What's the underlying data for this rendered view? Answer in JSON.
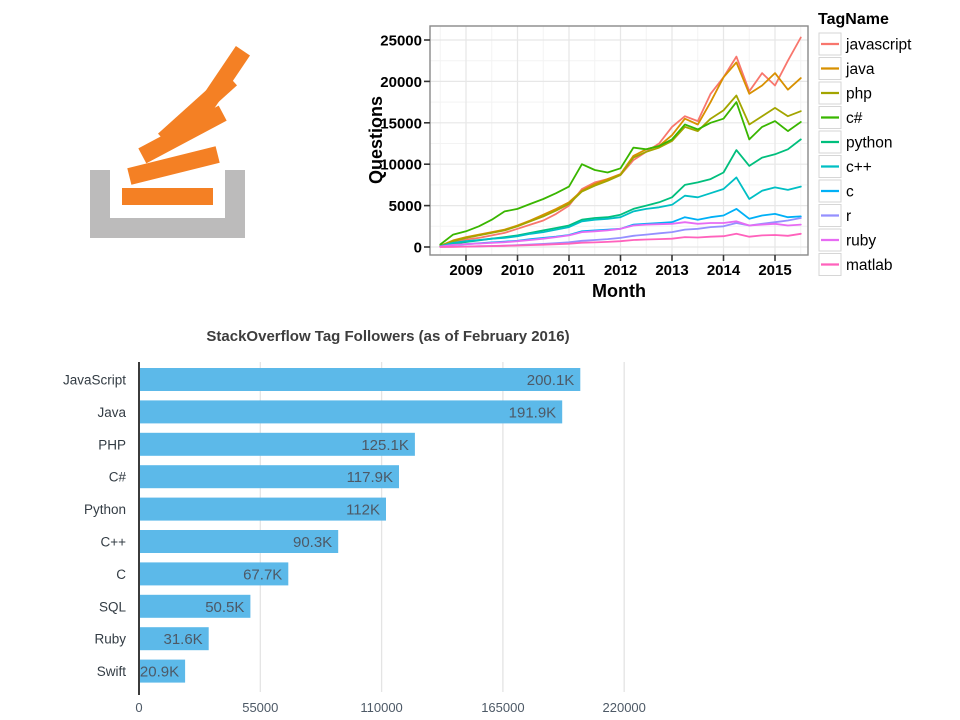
{
  "logo": {
    "name": "Stack Overflow logo",
    "tray_color": "#BCBBBB",
    "bar_color": "#F48024"
  },
  "chart_data": [
    {
      "id": "questions-by-month",
      "type": "line",
      "title": "",
      "xlabel": "Month",
      "ylabel": "Questions",
      "legend_title": "TagName",
      "legend_position": "right",
      "grid": true,
      "xlim": [
        2008.5,
        2015.5
      ],
      "ylim": [
        0,
        25000
      ],
      "x_ticks": [
        2009,
        2010,
        2011,
        2012,
        2013,
        2014,
        2015
      ],
      "y_ticks": [
        0,
        5000,
        10000,
        15000,
        20000,
        25000
      ],
      "x": [
        2008.5,
        2008.75,
        2009,
        2009.25,
        2009.5,
        2009.75,
        2010,
        2010.25,
        2010.5,
        2010.75,
        2011,
        2011.25,
        2011.5,
        2011.75,
        2012,
        2012.25,
        2012.5,
        2012.75,
        2013,
        2013.25,
        2013.5,
        2013.75,
        2014,
        2014.25,
        2014.5,
        2014.75,
        2015,
        2015.25,
        2015.5
      ],
      "series": [
        {
          "name": "javascript",
          "color": "#F8766D",
          "values": [
            100,
            600,
            900,
            1100,
            1400,
            1700,
            2200,
            2700,
            3200,
            4000,
            5000,
            7000,
            7800,
            8200,
            8700,
            10500,
            11500,
            12500,
            14500,
            15800,
            15200,
            18500,
            20500,
            23000,
            18800,
            21000,
            19500,
            22500,
            25300
          ]
        },
        {
          "name": "java",
          "color": "#D89000",
          "values": [
            150,
            800,
            1200,
            1500,
            1800,
            2100,
            2600,
            3200,
            3900,
            4600,
            5400,
            6800,
            7600,
            8200,
            8800,
            11000,
            11800,
            12200,
            13500,
            15500,
            14800,
            17500,
            20500,
            22300,
            18500,
            19500,
            21000,
            19000,
            20400
          ]
        },
        {
          "name": "php",
          "color": "#A3A500",
          "values": [
            120,
            700,
            1100,
            1400,
            1700,
            2000,
            2500,
            3100,
            3700,
            4400,
            5200,
            6700,
            7400,
            8000,
            8700,
            10800,
            11500,
            12000,
            12800,
            14500,
            14000,
            15500,
            16500,
            18300,
            14800,
            15800,
            16800,
            15800,
            16400
          ]
        },
        {
          "name": "c#",
          "color": "#39B600",
          "values": [
            300,
            1500,
            1900,
            2500,
            3300,
            4300,
            4600,
            5200,
            5800,
            6500,
            7300,
            10000,
            9300,
            9000,
            9500,
            12000,
            11800,
            12200,
            13000,
            14800,
            14200,
            15000,
            15500,
            17500,
            13000,
            14500,
            15200,
            14000,
            15100
          ]
        },
        {
          "name": "python",
          "color": "#00BF7D",
          "values": [
            80,
            400,
            600,
            800,
            1000,
            1200,
            1400,
            1700,
            2000,
            2300,
            2600,
            3300,
            3500,
            3600,
            3900,
            4600,
            5000,
            5400,
            6000,
            7500,
            7800,
            8200,
            9000,
            11700,
            9800,
            10800,
            11200,
            11800,
            13000
          ]
        },
        {
          "name": "c++",
          "color": "#00BFC4",
          "values": [
            100,
            500,
            700,
            850,
            1000,
            1100,
            1300,
            1600,
            1800,
            2100,
            2400,
            3100,
            3300,
            3400,
            3600,
            4300,
            4600,
            4800,
            5100,
            6200,
            6000,
            6500,
            7000,
            8400,
            5800,
            6800,
            7200,
            6900,
            7300
          ]
        },
        {
          "name": "c",
          "color": "#00B0F6",
          "values": [
            50,
            250,
            350,
            450,
            550,
            650,
            750,
            950,
            1100,
            1250,
            1450,
            1900,
            2000,
            2100,
            2200,
            2700,
            2800,
            2900,
            3000,
            3600,
            3300,
            3600,
            3800,
            4600,
            3400,
            3800,
            4000,
            3600,
            3700
          ]
        },
        {
          "name": "r",
          "color": "#9590FF",
          "values": [
            10,
            40,
            60,
            90,
            120,
            160,
            220,
            300,
            380,
            470,
            570,
            750,
            850,
            950,
            1100,
            1350,
            1500,
            1650,
            1800,
            2100,
            2200,
            2400,
            2500,
            2900,
            2600,
            2800,
            3000,
            3200,
            3500
          ]
        },
        {
          "name": "ruby",
          "color": "#E76BF3",
          "values": [
            60,
            250,
            350,
            420,
            500,
            580,
            700,
            850,
            1000,
            1200,
            1400,
            1800,
            1900,
            2000,
            2200,
            2600,
            2700,
            2750,
            2800,
            3000,
            2800,
            2900,
            2900,
            3100,
            2600,
            2700,
            2800,
            2600,
            2700
          ]
        },
        {
          "name": "matlab",
          "color": "#FF62BC",
          "values": [
            5,
            30,
            50,
            80,
            110,
            140,
            180,
            230,
            280,
            340,
            400,
            520,
            560,
            620,
            700,
            850,
            900,
            950,
            1000,
            1200,
            1150,
            1250,
            1300,
            1600,
            1250,
            1400,
            1450,
            1350,
            1600
          ]
        }
      ]
    },
    {
      "id": "tag-followers",
      "type": "bar",
      "orientation": "horizontal",
      "title": "StackOverflow Tag Followers (as of February 2016)",
      "categories": [
        "JavaScript",
        "Java",
        "PHP",
        "C#",
        "Python",
        "C++",
        "C",
        "SQL",
        "Ruby",
        "Swift"
      ],
      "values": [
        200100,
        191900,
        125100,
        117900,
        112000,
        90300,
        67700,
        50500,
        31600,
        20900
      ],
      "labels": [
        "200.1K",
        "191.9K",
        "125.1K",
        "117.9K",
        "112K",
        "90.3K",
        "67.7K",
        "50.5K",
        "31.6K",
        "20.9K"
      ],
      "x_ticks": [
        0,
        55000,
        110000,
        165000,
        220000
      ],
      "x_tick_labels": [
        "0",
        "55000",
        "110000",
        "165000",
        "220000"
      ],
      "xlim": [
        0,
        240000
      ],
      "bar_color": "#5CB9E9",
      "grid": true
    }
  ]
}
